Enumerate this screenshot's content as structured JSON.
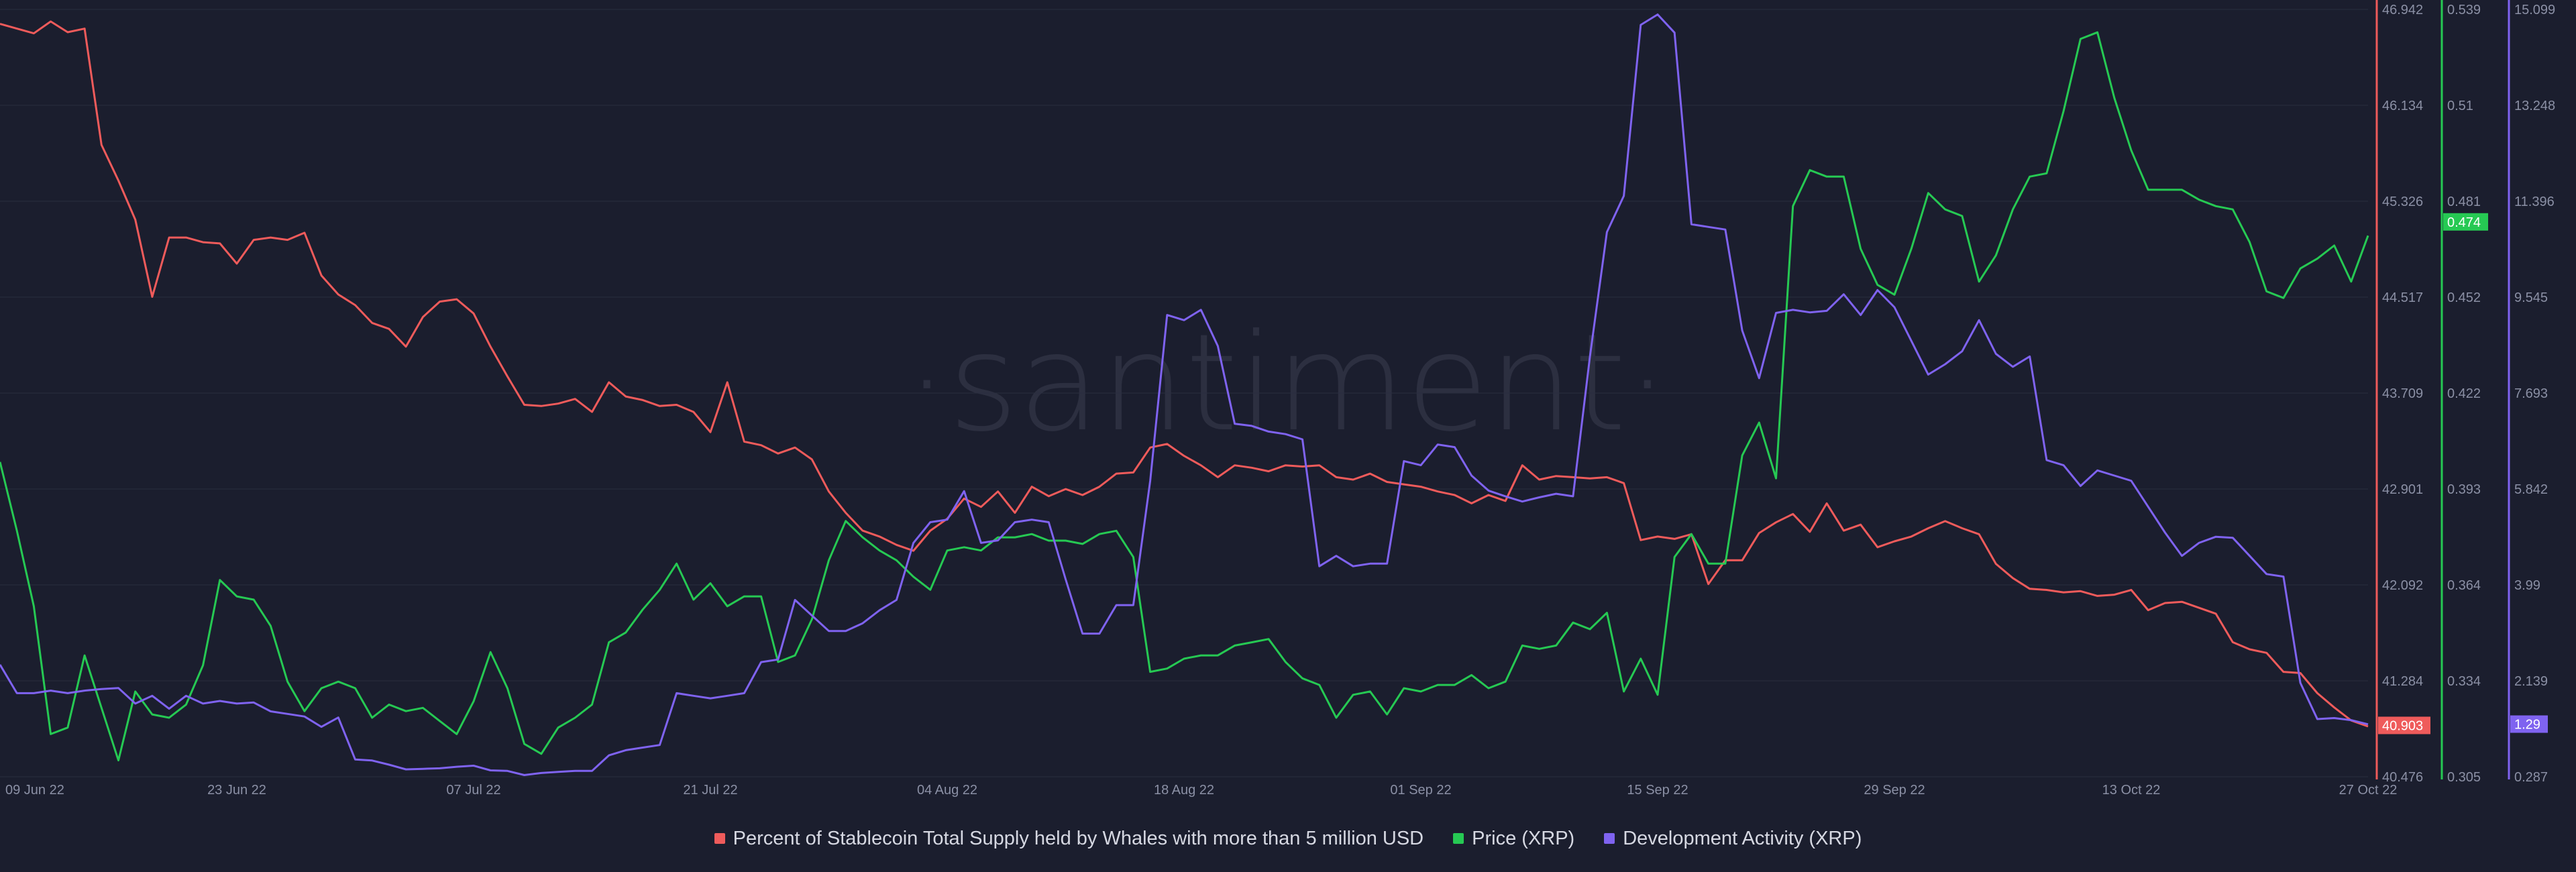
{
  "watermark": "·santiment·",
  "colors": {
    "background": "#1b1e2e",
    "whales": "#ef5b5b",
    "price": "#26c953",
    "dev": "#7f63f0",
    "grid": "#2a2e3f"
  },
  "chart_data": {
    "type": "line",
    "x_ticks": [
      "09 Jun 22",
      "23 Jun 22",
      "07 Jul 22",
      "21 Jul 22",
      "04 Aug 22",
      "18 Aug 22",
      "01 Sep 22",
      "15 Sep 22",
      "29 Sep 22",
      "13 Oct 22",
      "27 Oct 22"
    ],
    "x_range": [
      0,
      140
    ],
    "axes": {
      "whales": {
        "ticks": [
          "46.942",
          "46.134",
          "45.326",
          "44.517",
          "43.709",
          "42.901",
          "42.092",
          "41.284",
          "40.476"
        ],
        "range": [
          40.476,
          46.942
        ],
        "current": "40.903"
      },
      "price": {
        "ticks": [
          "0.539",
          "0.51",
          "0.481",
          "0.452",
          "0.422",
          "0.393",
          "0.364",
          "0.334",
          "0.305"
        ],
        "range": [
          0.305,
          0.539
        ],
        "current": "0.474"
      },
      "dev": {
        "ticks": [
          "15.099",
          "13.248",
          "11.396",
          "9.545",
          "7.693",
          "5.842",
          "3.99",
          "2.139",
          "0.287"
        ],
        "range": [
          0.287,
          15.099
        ],
        "current": "1.29"
      }
    },
    "series": [
      {
        "key": "whales",
        "name": "Percent of Stablecoin Total Supply held by Whales with more than 5 million USD",
        "x": [
          0,
          2,
          3,
          4,
          5,
          6,
          7,
          8,
          9,
          10,
          11,
          12,
          13,
          14,
          15,
          16,
          17,
          18,
          19,
          20,
          21,
          22,
          23,
          24,
          25,
          26,
          27,
          28,
          29,
          30,
          31,
          32,
          33,
          34,
          35,
          36,
          37,
          38,
          39,
          40,
          41,
          42,
          43,
          44,
          45,
          46,
          47,
          48,
          49,
          50,
          51,
          52,
          53,
          54,
          55,
          56,
          57,
          58,
          59,
          60,
          61,
          62,
          63,
          64,
          65,
          66,
          67,
          68,
          69,
          70,
          71,
          72,
          73,
          74,
          75,
          76,
          77,
          78,
          79,
          80,
          81,
          82,
          83,
          84,
          85,
          86,
          87,
          88,
          89,
          90,
          91,
          92,
          93,
          94,
          95,
          96,
          97,
          98,
          99,
          100,
          101,
          102,
          103,
          104,
          105,
          106,
          107,
          108,
          109,
          110,
          111,
          112,
          113,
          114,
          115,
          116,
          117,
          118,
          119,
          120,
          121,
          122,
          123,
          124,
          125,
          126,
          127,
          128,
          129,
          130,
          131,
          132,
          133,
          134,
          135,
          136,
          137,
          138,
          139,
          140
        ],
        "values": [
          46.82,
          46.74,
          46.84,
          46.75,
          46.78,
          45.8,
          45.5,
          45.17,
          44.52,
          45.02,
          45.02,
          44.98,
          44.97,
          44.8,
          45.0,
          45.02,
          45.0,
          45.06,
          44.7,
          44.54,
          44.45,
          44.3,
          44.25,
          44.1,
          44.35,
          44.48,
          44.5,
          44.38,
          44.1,
          43.85,
          43.61,
          43.6,
          43.62,
          43.66,
          43.55,
          43.8,
          43.68,
          43.65,
          43.6,
          43.61,
          43.55,
          43.38,
          43.8,
          43.3,
          43.27,
          43.2,
          43.25,
          43.15,
          42.88,
          42.7,
          42.55,
          42.5,
          42.43,
          42.38,
          42.55,
          42.65,
          42.82,
          42.75,
          42.88,
          42.7,
          42.92,
          42.84,
          42.9,
          42.85,
          42.92,
          43.03,
          43.04,
          43.25,
          43.28,
          43.18,
          43.1,
          43.0,
          43.1,
          43.08,
          43.05,
          43.1,
          43.09,
          43.1,
          43.0,
          42.98,
          43.03,
          42.96,
          42.94,
          42.92,
          42.88,
          42.85,
          42.78,
          42.85,
          42.8,
          43.1,
          42.98,
          43.01,
          43.0,
          42.99,
          43.0,
          42.95,
          42.47,
          42.5,
          42.48,
          42.52,
          42.1,
          42.3,
          42.3,
          42.53,
          42.62,
          42.69,
          42.54,
          42.78,
          42.55,
          42.6,
          42.41,
          42.46,
          42.5,
          42.57,
          42.63,
          42.57,
          42.52,
          42.27,
          42.15,
          42.06,
          42.05,
          42.03,
          42.04,
          42.0,
          42.01,
          42.05,
          41.88,
          41.94,
          41.95,
          41.9,
          41.85,
          41.61,
          41.55,
          41.52,
          41.36,
          41.35,
          41.18,
          41.06,
          40.95,
          40.9
        ]
      },
      {
        "key": "price",
        "name": "Price (XRP)",
        "x": [
          0,
          1,
          2,
          3,
          4,
          5,
          6,
          7,
          8,
          9,
          10,
          11,
          12,
          13,
          14,
          15,
          16,
          17,
          18,
          19,
          20,
          21,
          22,
          23,
          24,
          25,
          26,
          27,
          28,
          29,
          30,
          31,
          32,
          33,
          34,
          35,
          36,
          37,
          38,
          39,
          40,
          41,
          42,
          43,
          44,
          45,
          46,
          47,
          48,
          49,
          50,
          51,
          52,
          53,
          54,
          55,
          56,
          57,
          58,
          59,
          60,
          61,
          62,
          63,
          64,
          65,
          66,
          67,
          68,
          69,
          70,
          71,
          72,
          73,
          74,
          75,
          76,
          77,
          78,
          79,
          80,
          81,
          82,
          83,
          84,
          85,
          86,
          87,
          88,
          89,
          90,
          91,
          92,
          93,
          94,
          95,
          96,
          97,
          98,
          99,
          100,
          101,
          102,
          103,
          104,
          105,
          106,
          107,
          108,
          109,
          110,
          111,
          112,
          113,
          114,
          115,
          116,
          117,
          118,
          119,
          120,
          121,
          122,
          123,
          124,
          125,
          126,
          127,
          128,
          129,
          130,
          131,
          132,
          133,
          134,
          135,
          136,
          137,
          138,
          139,
          140
        ],
        "values": [
          0.401,
          0.38,
          0.357,
          0.318,
          0.32,
          0.342,
          0.326,
          0.31,
          0.331,
          0.324,
          0.323,
          0.327,
          0.339,
          0.365,
          0.36,
          0.359,
          0.351,
          0.334,
          0.325,
          0.332,
          0.334,
          0.332,
          0.323,
          0.327,
          0.325,
          0.326,
          0.322,
          0.318,
          0.328,
          0.343,
          0.332,
          0.315,
          0.312,
          0.32,
          0.323,
          0.327,
          0.346,
          0.349,
          0.356,
          0.362,
          0.37,
          0.359,
          0.364,
          0.357,
          0.36,
          0.36,
          0.34,
          0.342,
          0.353,
          0.371,
          0.383,
          0.378,
          0.374,
          0.371,
          0.366,
          0.362,
          0.374,
          0.375,
          0.374,
          0.378,
          0.378,
          0.379,
          0.377,
          0.377,
          0.376,
          0.379,
          0.38,
          0.372,
          0.337,
          0.338,
          0.341,
          0.342,
          0.342,
          0.345,
          0.346,
          0.347,
          0.34,
          0.335,
          0.333,
          0.323,
          0.33,
          0.331,
          0.324,
          0.332,
          0.331,
          0.333,
          0.333,
          0.336,
          0.332,
          0.334,
          0.345,
          0.344,
          0.345,
          0.352,
          0.35,
          0.355,
          0.331,
          0.341,
          0.33,
          0.372,
          0.379,
          0.37,
          0.37,
          0.403,
          0.413,
          0.396,
          0.479,
          0.49,
          0.488,
          0.488,
          0.466,
          0.455,
          0.452,
          0.466,
          0.483,
          0.478,
          0.476,
          0.456,
          0.464,
          0.478,
          0.488,
          0.489,
          0.508,
          0.53,
          0.532,
          0.512,
          0.496,
          0.484,
          0.484,
          0.484,
          0.481,
          0.479,
          0.478,
          0.468,
          0.453,
          0.451,
          0.46,
          0.463,
          0.467,
          0.456,
          0.47
        ]
      },
      {
        "key": "dev",
        "name": "Development Activity (XRP)",
        "x": [
          0,
          1,
          2,
          3,
          4,
          5,
          6,
          7,
          8,
          9,
          10,
          11,
          12,
          13,
          14,
          15,
          16,
          17,
          18,
          19,
          20,
          21,
          22,
          23,
          24,
          25,
          26,
          27,
          28,
          29,
          30,
          31,
          32,
          33,
          34,
          35,
          36,
          37,
          38,
          39,
          40,
          41,
          42,
          43,
          44,
          45,
          46,
          47,
          48,
          49,
          50,
          51,
          52,
          53,
          54,
          55,
          56,
          57,
          58,
          59,
          60,
          61,
          62,
          63,
          64,
          65,
          66,
          67,
          68,
          69,
          70,
          71,
          72,
          73,
          74,
          75,
          76,
          77,
          78,
          79,
          80,
          81,
          82,
          83,
          84,
          85,
          86,
          87,
          88,
          89,
          90,
          91,
          92,
          93,
          94,
          95,
          96,
          97,
          98,
          99,
          100,
          101,
          102,
          103,
          104,
          105,
          106,
          107,
          108,
          109,
          110,
          111,
          112,
          113,
          114,
          115,
          116,
          117,
          118,
          119,
          120,
          121,
          122,
          123,
          124,
          125,
          126,
          127,
          128,
          129,
          130,
          131,
          132,
          133,
          134,
          135,
          136,
          137,
          138,
          139,
          140
        ],
        "values": [
          2.45,
          1.9,
          1.9,
          1.95,
          1.9,
          1.95,
          1.98,
          2.0,
          1.7,
          1.85,
          1.6,
          1.85,
          1.7,
          1.75,
          1.7,
          1.72,
          1.55,
          1.5,
          1.45,
          1.25,
          1.43,
          0.62,
          0.6,
          0.52,
          0.43,
          0.44,
          0.45,
          0.48,
          0.5,
          0.41,
          0.4,
          0.32,
          0.36,
          0.38,
          0.4,
          0.4,
          0.7,
          0.8,
          0.85,
          0.9,
          1.9,
          1.85,
          1.8,
          1.85,
          1.9,
          2.5,
          2.55,
          3.7,
          3.4,
          3.1,
          3.1,
          3.25,
          3.5,
          3.7,
          4.8,
          5.2,
          5.25,
          5.8,
          4.8,
          4.85,
          5.2,
          5.25,
          5.2,
          4.1,
          3.05,
          3.05,
          3.6,
          3.6,
          6.0,
          9.2,
          9.1,
          9.3,
          8.6,
          7.1,
          7.06,
          6.95,
          6.9,
          6.8,
          4.35,
          4.55,
          4.35,
          4.4,
          4.4,
          6.38,
          6.3,
          6.7,
          6.65,
          6.1,
          5.81,
          5.7,
          5.6,
          5.68,
          5.75,
          5.7,
          8.4,
          10.8,
          11.5,
          14.8,
          15.0,
          14.65,
          10.95,
          10.9,
          10.85,
          8.9,
          7.98,
          9.24,
          9.3,
          9.25,
          9.28,
          9.6,
          9.2,
          9.68,
          9.35,
          8.7,
          8.05,
          8.25,
          8.5,
          9.1,
          8.45,
          8.2,
          8.4,
          6.4,
          6.3,
          5.9,
          6.2,
          6.1,
          6.0,
          5.5,
          5.0,
          4.55,
          4.8,
          4.92,
          4.9,
          4.55,
          4.2,
          4.15,
          2.1,
          1.4,
          1.42,
          1.38,
          1.3
        ]
      }
    ]
  },
  "legend": {
    "whales_label": "Percent of Stablecoin Total Supply held by Whales with more than 5 million USD",
    "price_label": "Price (XRP)",
    "dev_label": "Development Activity (XRP)"
  }
}
